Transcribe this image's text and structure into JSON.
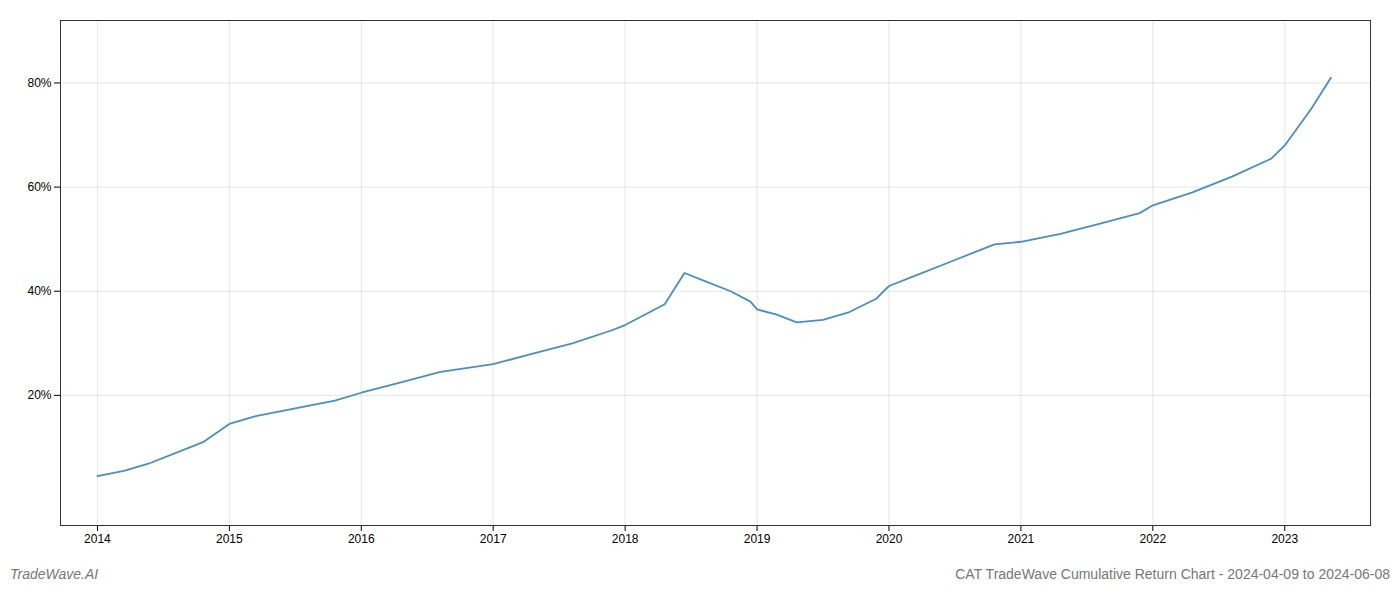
{
  "chart_data": {
    "type": "line",
    "title": "CAT TradeWave Cumulative Return Chart - 2024-04-09 to 2024-06-08",
    "annotations": [
      "TradeWave.AI"
    ],
    "x": [
      2014.0,
      2014.2,
      2014.4,
      2014.6,
      2014.8,
      2015.0,
      2015.2,
      2015.5,
      2015.8,
      2016.0,
      2016.3,
      2016.6,
      2017.0,
      2017.3,
      2017.6,
      2017.9,
      2018.0,
      2018.3,
      2018.45,
      2018.6,
      2018.8,
      2018.95,
      2019.0,
      2019.15,
      2019.3,
      2019.5,
      2019.7,
      2019.9,
      2020.0,
      2020.2,
      2020.5,
      2020.8,
      2021.0,
      2021.3,
      2021.6,
      2021.9,
      2022.0,
      2022.3,
      2022.6,
      2022.9,
      2023.0,
      2023.2,
      2023.35
    ],
    "values": [
      4.5,
      5.5,
      7.0,
      9.0,
      11.0,
      14.5,
      16.0,
      17.5,
      19.0,
      20.5,
      22.5,
      24.5,
      26.0,
      28.0,
      30.0,
      32.5,
      33.5,
      37.5,
      43.5,
      42.0,
      40.0,
      38.0,
      36.5,
      35.5,
      34.0,
      34.5,
      36.0,
      38.5,
      41.0,
      43.0,
      46.0,
      49.0,
      49.5,
      51.0,
      53.0,
      55.0,
      56.5,
      59.0,
      62.0,
      65.5,
      68.0,
      75.0,
      81.0
    ],
    "color": "#4a8fc0",
    "xlim": [
      2013.72,
      2023.65
    ],
    "xticks": [
      2014,
      2015,
      2016,
      2017,
      2018,
      2019,
      2020,
      2021,
      2022,
      2023
    ],
    "ylim": [
      -5,
      92
    ],
    "yticks": [
      {
        "value": 20,
        "label": "20%"
      },
      {
        "value": 40,
        "label": "40%"
      },
      {
        "value": 60,
        "label": "60%"
      },
      {
        "value": 80,
        "label": "80%"
      }
    ],
    "grid": true
  }
}
